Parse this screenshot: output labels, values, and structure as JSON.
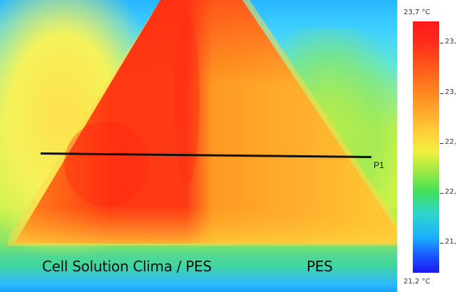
{
  "image": {
    "type": "thermal-image",
    "colormap": "rainbow",
    "caption_left": "Cell Solution Clima / PES",
    "caption_right": "PES",
    "marker_label": "P1"
  },
  "scale": {
    "max_label": "23,7 °C",
    "min_label": "21,2 °C",
    "tick_labels": [
      "23,",
      "23,",
      "22,",
      "22,",
      "21,"
    ]
  },
  "colors": {
    "hot": "#ff1a1a",
    "warm": "#ffd23a",
    "mid": "#3fe05a",
    "cool": "#1ab0ff",
    "cold": "#1a1aee",
    "line": "#111111"
  }
}
